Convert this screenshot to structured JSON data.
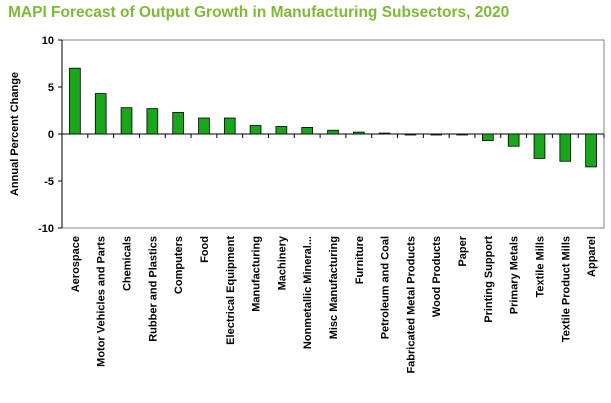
{
  "chart_data": {
    "type": "bar",
    "title": "MAPI Forecast of Output Growth in Manufacturing Subsectors, 2020",
    "xlabel": "",
    "ylabel": "Annual Percent Change",
    "ylim": [
      -10,
      10
    ],
    "yticks": [
      10,
      5,
      0,
      -5,
      -10
    ],
    "grid": false,
    "legend": "none",
    "bar_color": "#1aa61a",
    "title_color": "#7dbb35",
    "categories": [
      "Aerospace",
      "Motor Vehicles and Parts",
      "Chemicals",
      "Rubber and Plastics",
      "Computers",
      "Food",
      "Electrical Equipment",
      "Manufacturing",
      "Machinery",
      "Nonmetallic Mineral...",
      "Misc Manufacturing",
      "Furniture",
      "Petroleum and Coal",
      "Fabricated Metal Products",
      "Wood Products",
      "Paper",
      "Printing Support",
      "Primary Metals",
      "Textile Mills",
      "Textile Product Mills",
      "Apparel"
    ],
    "values": [
      7.0,
      4.3,
      2.8,
      2.7,
      2.3,
      1.7,
      1.7,
      0.9,
      0.8,
      0.7,
      0.4,
      0.2,
      0.1,
      -0.1,
      -0.1,
      -0.1,
      -0.7,
      -1.3,
      -2.6,
      -2.9,
      -3.5
    ]
  }
}
